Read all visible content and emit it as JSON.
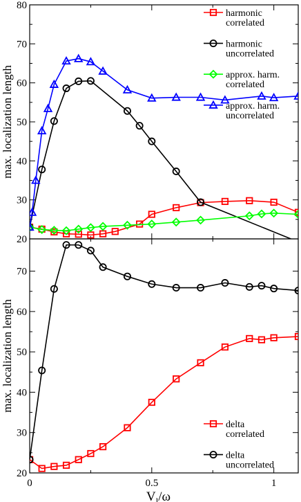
{
  "chart_data": [
    {
      "type": "line",
      "ylabel": "max. localization length",
      "xlim": [
        0,
        1.1
      ],
      "ylim": [
        20,
        80
      ],
      "yticks": [
        20,
        30,
        40,
        50,
        60,
        70,
        80
      ],
      "legend_position": "top-right",
      "series": [
        {
          "name": "harmonic correlated",
          "legend_lines": [
            "harmonic",
            "correlated"
          ],
          "color": "#ff0000",
          "marker": "square",
          "x": [
            0,
            0.05,
            0.1,
            0.15,
            0.2,
            0.25,
            0.3,
            0.35,
            0.45,
            0.5,
            0.6,
            0.7,
            0.8,
            0.9,
            1.0,
            1.1
          ],
          "y": [
            23,
            22.5,
            21.8,
            21.3,
            21.2,
            21,
            21.3,
            21.9,
            23.8,
            26.3,
            28,
            29.3,
            29.6,
            29.8,
            29.4,
            26.8
          ]
        },
        {
          "name": "harmonic uncorrelated",
          "legend_lines": [
            "harmonic",
            "uncorrelated"
          ],
          "color": "#000000",
          "marker": "circle",
          "x": [
            0,
            0.05,
            0.1,
            0.15,
            0.2,
            0.25,
            0.4,
            0.45,
            0.5,
            0.6,
            0.7,
            1.07
          ],
          "y": [
            23,
            37.8,
            50.2,
            58.6,
            60.4,
            60.5,
            52.8,
            49,
            45,
            37.3,
            29.4,
            20
          ]
        },
        {
          "name": "approx. harm. correlated",
          "legend_lines": [
            "approx. harm.",
            "correlated"
          ],
          "color": "#00ff00",
          "marker": "diamond",
          "x": [
            0,
            0.05,
            0.1,
            0.15,
            0.2,
            0.25,
            0.3,
            0.4,
            0.5,
            0.6,
            0.7,
            0.9,
            0.95,
            1.0,
            1.1
          ],
          "y": [
            23,
            22.4,
            22.2,
            22.1,
            22.5,
            22.9,
            23.2,
            23.5,
            23.8,
            24.3,
            24.8,
            25.9,
            26.4,
            26.6,
            26.3
          ]
        },
        {
          "name": "approx. harm. uncorrelated",
          "legend_lines": [
            "approx. harm.",
            "uncorrelated"
          ],
          "color": "#0000ff",
          "marker": "triangle",
          "x": [
            0,
            0.01,
            0.025,
            0.05,
            0.075,
            0.1,
            0.15,
            0.2,
            0.25,
            0.3,
            0.4,
            0.5,
            0.6,
            0.7,
            0.8,
            0.95,
            1.0,
            1.1
          ],
          "y": [
            23,
            26.8,
            35,
            47.7,
            53.4,
            59.6,
            65.6,
            66.2,
            65.4,
            63,
            58.2,
            56.1,
            56.3,
            56.3,
            55.6,
            56.6,
            56.2,
            56.6
          ]
        }
      ]
    },
    {
      "type": "line",
      "ylabel": "max. localization length",
      "xlabel": "V",
      "xlabel_sub": "l",
      "xlabel_suffix": "/ω",
      "xlim": [
        0,
        1.1
      ],
      "ylim": [
        20,
        78
      ],
      "yticks": [
        20,
        30,
        40,
        50,
        60,
        70
      ],
      "xticks": [
        0,
        0.5,
        1
      ],
      "xtick_labels": [
        "0",
        "0.5",
        "1"
      ],
      "legend_position": "bottom-right",
      "series": [
        {
          "name": "delta correlated",
          "legend_lines": [
            "delta",
            "correlated"
          ],
          "color": "#ff0000",
          "marker": "square",
          "x": [
            0,
            0.05,
            0.1,
            0.15,
            0.2,
            0.25,
            0.3,
            0.4,
            0.5,
            0.6,
            0.7,
            0.8,
            0.9,
            0.95,
            1.0,
            1.1
          ],
          "y": [
            23.3,
            21.1,
            21.6,
            21.9,
            23.3,
            24.8,
            26.5,
            31.2,
            37.5,
            43.3,
            47.3,
            51.2,
            53.3,
            53,
            53.5,
            53.8
          ]
        },
        {
          "name": "delta uncorrelated",
          "legend_lines": [
            "delta",
            "uncorrelated"
          ],
          "color": "#000000",
          "marker": "circle",
          "x": [
            0,
            0.05,
            0.1,
            0.15,
            0.2,
            0.25,
            0.3,
            0.4,
            0.5,
            0.6,
            0.7,
            0.8,
            0.9,
            0.95,
            1.0,
            1.1
          ],
          "y": [
            23.3,
            45.4,
            65.6,
            76.5,
            76.5,
            75.1,
            71,
            68.7,
            66.8,
            65.9,
            65.9,
            67.1,
            66.1,
            66.4,
            65.7,
            65.2
          ]
        }
      ]
    }
  ]
}
